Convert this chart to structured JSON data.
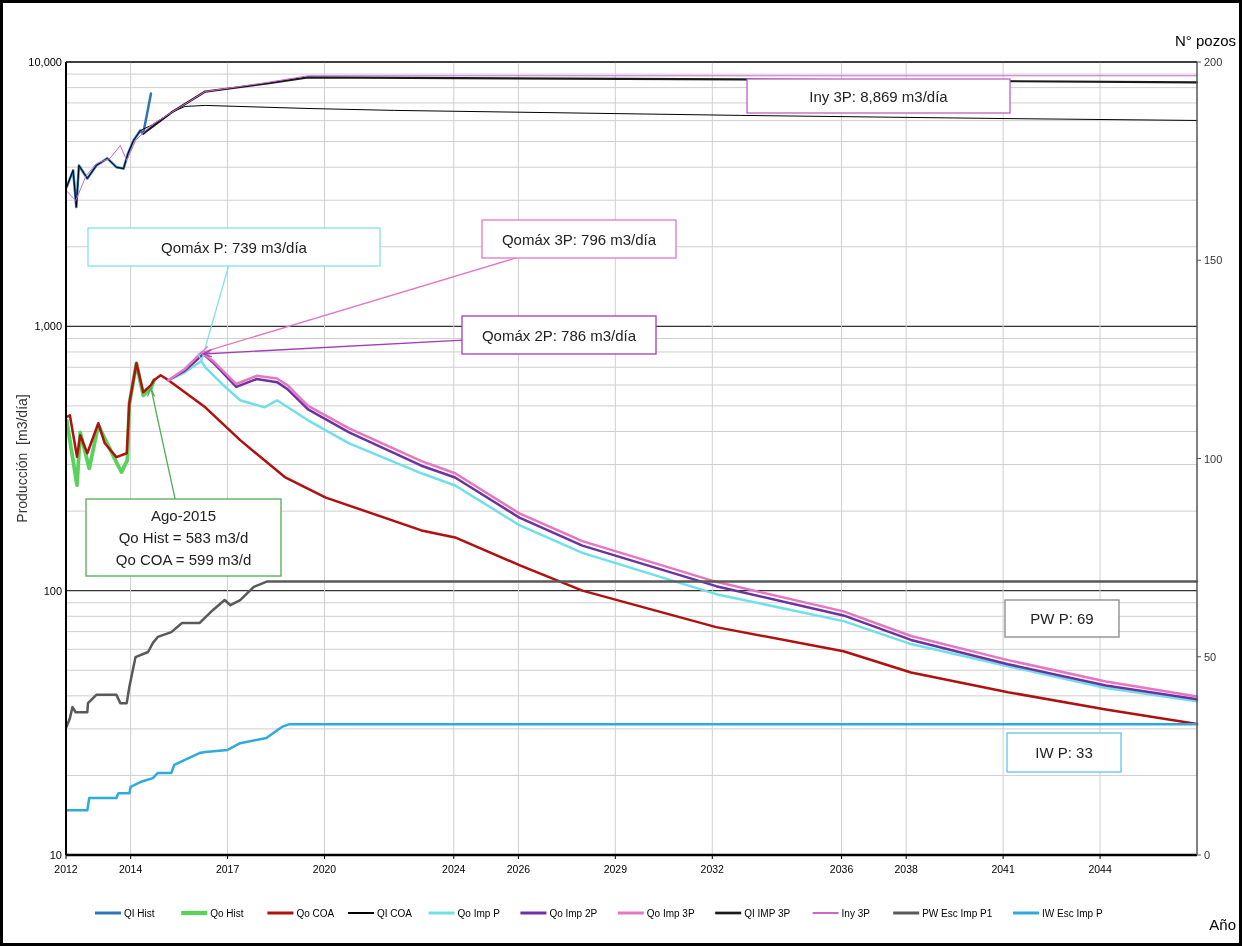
{
  "chart_data": {
    "type": "line",
    "xlabel": "Año",
    "ylabel": "Producción  [m3/día]",
    "y2label": "N° pozos",
    "xlim": [
      2012,
      2047
    ],
    "xticks": [
      2012,
      2014,
      2017,
      2020,
      2024,
      2026,
      2029,
      2032,
      2036,
      2038,
      2041,
      2044
    ],
    "ylim": [
      10,
      10000
    ],
    "log": "y",
    "yticks": [
      {
        "value": 10,
        "label": "10"
      },
      {
        "value": 20,
        "label": null
      },
      {
        "value": 30,
        "label": null
      },
      {
        "value": 40,
        "label": null
      },
      {
        "value": 50,
        "label": null
      },
      {
        "value": 60,
        "label": null
      },
      {
        "value": 70,
        "label": null
      },
      {
        "value": 80,
        "label": null
      },
      {
        "value": 90,
        "label": null
      },
      {
        "value": 100,
        "label": "100"
      },
      {
        "value": 200,
        "label": null
      },
      {
        "value": 300,
        "label": null
      },
      {
        "value": 400,
        "label": null
      },
      {
        "value": 500,
        "label": null
      },
      {
        "value": 600,
        "label": null
      },
      {
        "value": 700,
        "label": null
      },
      {
        "value": 800,
        "label": null
      },
      {
        "value": 900,
        "label": null
      },
      {
        "value": 1000,
        "label": "1,000"
      },
      {
        "value": 2000,
        "label": null
      },
      {
        "value": 3000,
        "label": null
      },
      {
        "value": 4000,
        "label": null
      },
      {
        "value": 5000,
        "label": null
      },
      {
        "value": 6000,
        "label": null
      },
      {
        "value": 7000,
        "label": null
      },
      {
        "value": 8000,
        "label": null
      },
      {
        "value": 9000,
        "label": null
      },
      {
        "value": 10000,
        "label": "10,000"
      }
    ],
    "y2lim": [
      0,
      200
    ],
    "y2ticks": [
      0,
      50,
      100,
      150,
      200
    ],
    "grid": true,
    "legend": "bottom",
    "series": [
      {
        "name": "QI Hist",
        "color": "#2e75b6",
        "x": [
          2012.02,
          2012.22,
          2012.32,
          2012.4,
          2012.66,
          2012.94,
          2013.28,
          2013.56,
          2013.78,
          2013.92,
          2014.09,
          2014.3,
          2014.39,
          2014.63
        ],
        "values": [
          3365,
          3890,
          2826,
          4060,
          3626,
          4060,
          4318,
          4000,
          3950,
          4510,
          5050,
          5505,
          5360,
          7600
        ]
      },
      {
        "name": "Qo Hist",
        "color": "#5ad15a",
        "x": [
          2012.02,
          2012.34,
          2012.44,
          2012.72,
          2013,
          2013.56,
          2013.72,
          2013.9,
          2013.96,
          2014.18,
          2014.39,
          2014.63,
          2014.72
        ],
        "values": [
          441,
          251,
          397,
          290,
          422,
          306,
          281,
          312,
          508,
          725,
          548,
          583,
          625
        ]
      },
      {
        "name": "Qo COA",
        "color": "#b01010",
        "x": [
          2012.02,
          2012.12,
          2012.34,
          2012.44,
          2012.66,
          2013,
          2013.2,
          2013.56,
          2013.88,
          2013.96,
          2014.18,
          2014.39,
          2014.63,
          2014.72,
          2014.93,
          2015.17,
          2016.31,
          2017.39,
          2018.77,
          2020.04,
          2023,
          2024.04,
          2026.03,
          2027.98,
          2032.12,
          2036.06,
          2038.15,
          2041.15,
          2044.18,
          2047
        ],
        "values": [
          454,
          461,
          321,
          387,
          331,
          430,
          361,
          320,
          331,
          512,
          725,
          563,
          599,
          625,
          653,
          625,
          494,
          371,
          269,
          225,
          169,
          159,
          125,
          100,
          72.8,
          59,
          49,
          41.3,
          35.5,
          31.3
        ]
      },
      {
        "name": "QI COA",
        "color": "#000000",
        "x": [
          2012.02,
          2012.22,
          2012.32,
          2012.4,
          2012.66,
          2012.94,
          2013.28,
          2013.56,
          2013.78,
          2013.92,
          2014.09,
          2014.3,
          2014.63,
          2015.26,
          2015.68,
          2016.31,
          2019.49,
          2022.16,
          2032.88,
          2041.03,
          2047
        ],
        "values": [
          3365,
          3890,
          2826,
          4060,
          3626,
          4060,
          4318,
          4000,
          3950,
          4510,
          5050,
          5505,
          5750,
          6440,
          6790,
          6850,
          6670,
          6560,
          6280,
          6110,
          6010
        ]
      },
      {
        "name": "Qo Imp P",
        "color": "#70e0e8",
        "x": [
          2015.17,
          2015.68,
          2016.19,
          2016.31,
          2016.94,
          2017.39,
          2018.14,
          2018.53,
          2019.49,
          2020.76,
          2023,
          2024.04,
          2026.03,
          2027.98,
          2032.12,
          2036.06,
          2038.15,
          2041.15,
          2044.18,
          2047
        ],
        "values": [
          625,
          670,
          739,
          700,
          588,
          525,
          494,
          525,
          441,
          361,
          278,
          250,
          177,
          139,
          97,
          76.7,
          62.8,
          51.8,
          42.8,
          38.2
        ]
      },
      {
        "name": "Qo Imp 2P",
        "color": "#7030a0",
        "x": [
          2015.17,
          2015.68,
          2016.25,
          2016.55,
          2017.27,
          2017.9,
          2018.53,
          2018.86,
          2019.49,
          2020.76,
          2023,
          2024.04,
          2026.03,
          2027.98,
          2032.12,
          2036.06,
          2038.15,
          2041.15,
          2044.18,
          2047
        ],
        "values": [
          625,
          680,
          786,
          730,
          590,
          632,
          615,
          578,
          485,
          397,
          297,
          268,
          189,
          148,
          104,
          80.6,
          65.1,
          52.7,
          43.8,
          38.8
        ]
      },
      {
        "name": "Qo Imp 3P",
        "color": "#e377c2",
        "x": [
          2015.17,
          2015.68,
          2016.19,
          2016.55,
          2017.27,
          2017.9,
          2018.53,
          2018.86,
          2019.49,
          2020.76,
          2023,
          2024.04,
          2026.03,
          2027.98,
          2032.12,
          2036.06,
          2038.15,
          2041.15,
          2044.18,
          2047
        ],
        "values": [
          625,
          690,
          796,
          740,
          605,
          650,
          635,
          598,
          500,
          411,
          309,
          278,
          196,
          154,
          108,
          83.5,
          67.4,
          54.6,
          45.3,
          39.8
        ]
      },
      {
        "name": "QI IMP 3P",
        "color": "#1a1a1a",
        "x": [
          2014.39,
          2015.26,
          2016.31,
          2018.23,
          2019.49,
          2032.88,
          2047
        ],
        "values": [
          5360,
          6440,
          7730,
          8290,
          8740,
          8590,
          8370
        ]
      },
      {
        "name": "Iny 3P",
        "color": "#cc66cc",
        "x": [
          2012,
          2012.3,
          2012.62,
          2012.94,
          2013.36,
          2013.68,
          2013.88,
          2014.15,
          2014.63,
          2015.26,
          2016.31,
          2018.23,
          2019.49,
          2047
        ],
        "values": [
          3270,
          2990,
          3710,
          4130,
          4318,
          4830,
          4240,
          5050,
          5750,
          6440,
          7730,
          8370,
          8869,
          8869
        ]
      },
      {
        "name": "PW Esc Imp P1",
        "color": "#595959",
        "axis": "y2",
        "line_style": "solid",
        "x": [
          2012.02,
          2012.12,
          2012.2,
          2012.3,
          2012.66,
          2012.68,
          2012.94,
          2013.56,
          2013.68,
          2013.88,
          2013.96,
          2014.15,
          2014.54,
          2014.69,
          2014.84,
          2015.26,
          2015.59,
          2016.13,
          2016.55,
          2016.91,
          2017.09,
          2017.39,
          2017.81,
          2018.23,
          2047
        ],
        "values": [
          32.4,
          34.5,
          37.3,
          36,
          36,
          38.3,
          40.4,
          40.4,
          38.3,
          38.3,
          42.4,
          49.9,
          51.2,
          53.5,
          55,
          56.2,
          58.5,
          58.5,
          61.8,
          64.3,
          63,
          64.3,
          67.6,
          69,
          69
        ]
      },
      {
        "name": "IW Esc Imp P",
        "color": "#2eaadc",
        "axis": "y2",
        "x": [
          2012.02,
          2012.66,
          2012.72,
          2013.56,
          2013.62,
          2013.96,
          2014,
          2014.3,
          2014.69,
          2014.84,
          2015.26,
          2015.35,
          2015.68,
          2016.13,
          2016.31,
          2017,
          2017.39,
          2018.2,
          2018.68,
          2018.92,
          2047
        ],
        "values": [
          11.3,
          11.3,
          14.4,
          14.4,
          15.6,
          15.6,
          17.2,
          18.4,
          19.4,
          20.7,
          20.7,
          22.7,
          24,
          25.7,
          26,
          26.5,
          28.2,
          29.5,
          32.3,
          33,
          33
        ]
      }
    ],
    "annotations": [
      "Iny 3P: 8,869 m3/día",
      {
        "text": "Qomáx P: 739 m3/día",
        "x": 2016.19,
        "y": 739
      },
      {
        "text": "Qomáx 3P: 796 m3/día",
        "x": 2016.19,
        "y": 796
      },
      {
        "text": "Qomáx 2P: 786 m3/día",
        "x": 2016.25,
        "y": 786
      },
      {
        "text": "Ago-2015\nQo Hist = 583 m3/d\nQo COA = 599 m3/d",
        "x": 2014.63,
        "y": 583
      },
      "PW P: 69",
      "IW P: 33"
    ]
  }
}
